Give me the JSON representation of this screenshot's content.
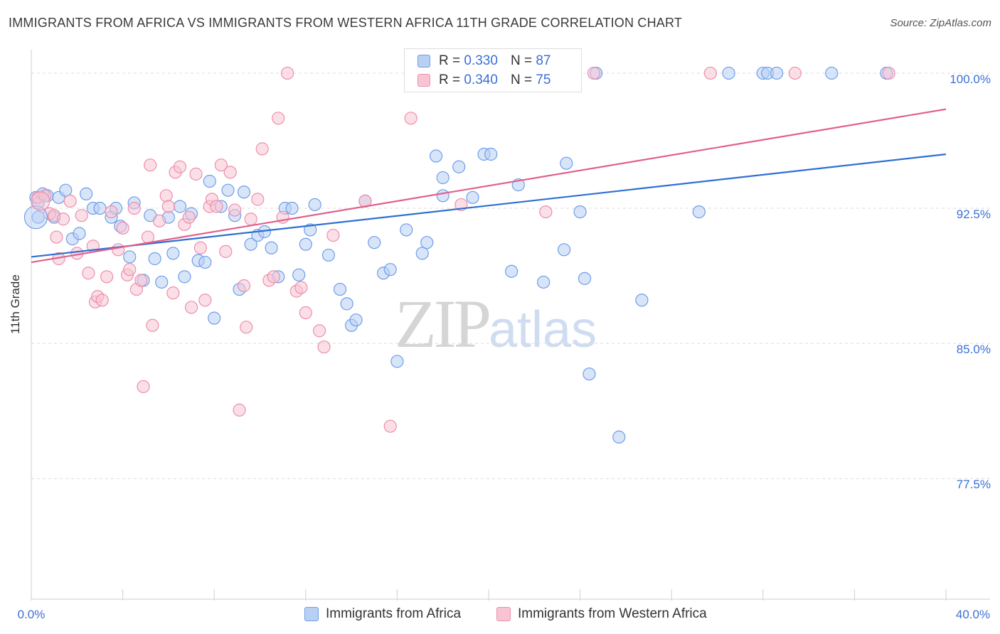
{
  "title": "IMMIGRANTS FROM AFRICA VS IMMIGRANTS FROM WESTERN AFRICA 11TH GRADE CORRELATION CHART",
  "source": "Source: ZipAtlas.com",
  "watermark": {
    "zip": "ZIP",
    "atlas": "atlas"
  },
  "legend": {
    "r_label": "R =",
    "n_label": "N =",
    "items": [
      {
        "r": "0.330",
        "n": "87",
        "name": "Immigrants from Africa",
        "fill": "#b8d0f4",
        "stroke": "#6e9ee8"
      },
      {
        "r": "0.340",
        "n": "75",
        "name": "Immigrants from Western Africa",
        "fill": "#f8c4d4",
        "stroke": "#ec8fab"
      }
    ]
  },
  "chart_data": {
    "type": "scatter",
    "xlabel": "",
    "ylabel": "11th Grade",
    "xlim": [
      0,
      40
    ],
    "ylim": [
      70.8,
      101.3
    ],
    "x_tick_labels": [
      "0.0%",
      "40.0%"
    ],
    "y_ticks": [
      77.5,
      85.0,
      92.5,
      100.0
    ],
    "y_tick_labels": [
      "77.5%",
      "85.0%",
      "92.5%",
      "100.0%"
    ],
    "grid": true,
    "series": [
      {
        "name": "Immigrants from Africa",
        "color": "#6e9ee8",
        "fill": "#b8d0f4",
        "trend_color": "#2e6fd1",
        "trend": [
          [
            0,
            89.8
          ],
          [
            40,
            95.5
          ]
        ],
        "points": [
          [
            0.2,
            93.1
          ],
          [
            0.3,
            92.8
          ],
          [
            0.5,
            93.3
          ],
          [
            0.7,
            93.2
          ],
          [
            1.2,
            93.1
          ],
          [
            1.5,
            93.5
          ],
          [
            2.4,
            93.3
          ],
          [
            0.3,
            92.0
          ],
          [
            1.0,
            92.0
          ],
          [
            1.8,
            90.8
          ],
          [
            2.1,
            91.1
          ],
          [
            2.7,
            92.5
          ],
          [
            3.0,
            92.5
          ],
          [
            3.5,
            92.0
          ],
          [
            3.7,
            92.5
          ],
          [
            3.9,
            91.5
          ],
          [
            4.3,
            89.8
          ],
          [
            4.5,
            92.8
          ],
          [
            4.9,
            88.5
          ],
          [
            5.2,
            92.1
          ],
          [
            5.4,
            89.7
          ],
          [
            5.7,
            88.4
          ],
          [
            6.0,
            92.0
          ],
          [
            6.2,
            90.0
          ],
          [
            6.5,
            92.6
          ],
          [
            6.7,
            88.7
          ],
          [
            7.0,
            92.2
          ],
          [
            7.3,
            89.6
          ],
          [
            7.6,
            89.5
          ],
          [
            7.8,
            94.0
          ],
          [
            8.0,
            86.4
          ],
          [
            8.3,
            92.6
          ],
          [
            8.6,
            93.5
          ],
          [
            8.9,
            92.1
          ],
          [
            9.1,
            88.0
          ],
          [
            9.3,
            93.4
          ],
          [
            9.6,
            90.5
          ],
          [
            9.9,
            91.0
          ],
          [
            10.2,
            91.2
          ],
          [
            10.5,
            90.3
          ],
          [
            10.8,
            88.7
          ],
          [
            11.1,
            92.5
          ],
          [
            11.4,
            92.5
          ],
          [
            11.7,
            88.8
          ],
          [
            12.0,
            90.5
          ],
          [
            12.2,
            91.3
          ],
          [
            12.4,
            92.7
          ],
          [
            13.0,
            89.9
          ],
          [
            13.5,
            88.0
          ],
          [
            13.8,
            87.2
          ],
          [
            14.0,
            86.0
          ],
          [
            14.2,
            86.3
          ],
          [
            14.6,
            92.9
          ],
          [
            15.0,
            90.6
          ],
          [
            15.4,
            88.9
          ],
          [
            15.7,
            89.1
          ],
          [
            16.0,
            84.0
          ],
          [
            16.4,
            91.3
          ],
          [
            17.1,
            90.0
          ],
          [
            17.3,
            90.6
          ],
          [
            17.7,
            95.4
          ],
          [
            18.0,
            94.2
          ],
          [
            18.0,
            93.2
          ],
          [
            18.7,
            94.8
          ],
          [
            19.0,
            100.0
          ],
          [
            19.3,
            93.1
          ],
          [
            19.8,
            95.5
          ],
          [
            20.1,
            95.5
          ],
          [
            20.3,
            100.0
          ],
          [
            21.0,
            89.0
          ],
          [
            21.3,
            93.8
          ],
          [
            22.4,
            88.4
          ],
          [
            23.3,
            90.2
          ],
          [
            23.4,
            95.0
          ],
          [
            24.0,
            92.3
          ],
          [
            24.2,
            88.6
          ],
          [
            24.7,
            100.0
          ],
          [
            25.7,
            79.8
          ],
          [
            26.7,
            87.4
          ],
          [
            29.2,
            92.3
          ],
          [
            30.5,
            100.0
          ],
          [
            32.0,
            100.0
          ],
          [
            32.2,
            100.0
          ],
          [
            32.6,
            100.0
          ],
          [
            35.0,
            100.0
          ],
          [
            37.4,
            100.0
          ],
          [
            24.4,
            83.3
          ]
        ]
      },
      {
        "name": "Immigrants from Western Africa",
        "color": "#ec8fab",
        "fill": "#f8c4d4",
        "trend_color": "#e0608d",
        "trend": [
          [
            0,
            89.5
          ],
          [
            40,
            98.0
          ]
        ],
        "points": [
          [
            0.3,
            93.1
          ],
          [
            0.6,
            93.2
          ],
          [
            0.8,
            92.2
          ],
          [
            1.0,
            92.1
          ],
          [
            1.1,
            90.9
          ],
          [
            1.2,
            89.7
          ],
          [
            1.4,
            91.9
          ],
          [
            1.7,
            92.9
          ],
          [
            2.0,
            90.0
          ],
          [
            2.2,
            92.1
          ],
          [
            2.5,
            88.9
          ],
          [
            2.7,
            90.4
          ],
          [
            2.8,
            87.3
          ],
          [
            2.9,
            87.6
          ],
          [
            3.1,
            87.4
          ],
          [
            3.3,
            88.7
          ],
          [
            3.5,
            92.3
          ],
          [
            3.8,
            90.2
          ],
          [
            4.0,
            91.4
          ],
          [
            4.2,
            88.8
          ],
          [
            4.3,
            89.1
          ],
          [
            4.5,
            92.5
          ],
          [
            4.6,
            88.0
          ],
          [
            4.8,
            88.5
          ],
          [
            4.9,
            82.6
          ],
          [
            5.1,
            90.9
          ],
          [
            5.2,
            94.9
          ],
          [
            5.3,
            86.0
          ],
          [
            5.6,
            91.8
          ],
          [
            5.9,
            93.2
          ],
          [
            6.0,
            92.6
          ],
          [
            6.2,
            87.8
          ],
          [
            6.3,
            94.5
          ],
          [
            6.5,
            94.8
          ],
          [
            6.7,
            91.6
          ],
          [
            6.9,
            92.0
          ],
          [
            7.0,
            87.0
          ],
          [
            7.2,
            94.4
          ],
          [
            7.4,
            90.3
          ],
          [
            7.6,
            87.4
          ],
          [
            7.8,
            92.6
          ],
          [
            7.9,
            93.0
          ],
          [
            8.1,
            92.6
          ],
          [
            8.3,
            94.9
          ],
          [
            8.5,
            90.1
          ],
          [
            8.7,
            94.5
          ],
          [
            8.9,
            92.4
          ],
          [
            9.1,
            81.3
          ],
          [
            9.3,
            88.2
          ],
          [
            9.4,
            85.9
          ],
          [
            9.6,
            91.9
          ],
          [
            9.9,
            93.0
          ],
          [
            10.1,
            95.8
          ],
          [
            10.4,
            88.5
          ],
          [
            10.6,
            88.7
          ],
          [
            10.8,
            97.5
          ],
          [
            11.0,
            92.0
          ],
          [
            11.2,
            100.0
          ],
          [
            11.6,
            87.9
          ],
          [
            11.8,
            88.1
          ],
          [
            12.0,
            86.7
          ],
          [
            12.6,
            85.7
          ],
          [
            12.8,
            84.8
          ],
          [
            13.2,
            91.0
          ],
          [
            14.6,
            92.9
          ],
          [
            15.7,
            80.4
          ],
          [
            16.6,
            97.5
          ],
          [
            17.1,
            100.0
          ],
          [
            18.8,
            92.7
          ],
          [
            19.6,
            100.0
          ],
          [
            22.5,
            92.3
          ],
          [
            24.6,
            100.0
          ],
          [
            29.7,
            100.0
          ],
          [
            33.4,
            100.0
          ],
          [
            37.5,
            100.0
          ]
        ]
      }
    ]
  }
}
